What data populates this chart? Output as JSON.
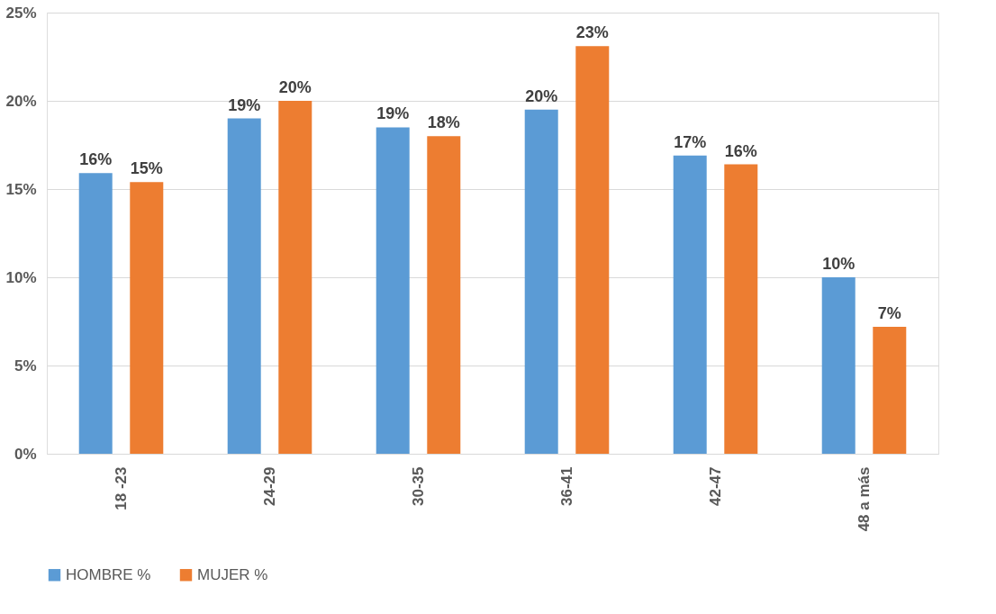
{
  "chart_data": {
    "type": "bar",
    "categories": [
      "18 -23",
      "24-29",
      "30-35",
      "36-41",
      "42-47",
      "48 a más"
    ],
    "series": [
      {
        "name": "HOMBRE %",
        "color": "#5b9bd5",
        "values": [
          15.9,
          19.0,
          18.5,
          19.5,
          16.9,
          10.0
        ],
        "value_labels": [
          "16%",
          "19%",
          "19%",
          "20%",
          "17%",
          "10%"
        ]
      },
      {
        "name": "MUJER %",
        "color": "#ed7d31",
        "values": [
          15.4,
          20.0,
          18.0,
          23.1,
          16.4,
          7.2
        ],
        "value_labels": [
          "15%",
          "20%",
          "18%",
          "23%",
          "16%",
          "7%"
        ]
      }
    ],
    "ylim": [
      0,
      25
    ],
    "yticks": [
      {
        "value": 0,
        "label": "0%"
      },
      {
        "value": 5,
        "label": "5%"
      },
      {
        "value": 10,
        "label": "10%"
      },
      {
        "value": 15,
        "label": "15%"
      },
      {
        "value": 20,
        "label": "20%"
      },
      {
        "value": 25,
        "label": "25%"
      }
    ],
    "grid": "y",
    "legend": "bottom"
  }
}
